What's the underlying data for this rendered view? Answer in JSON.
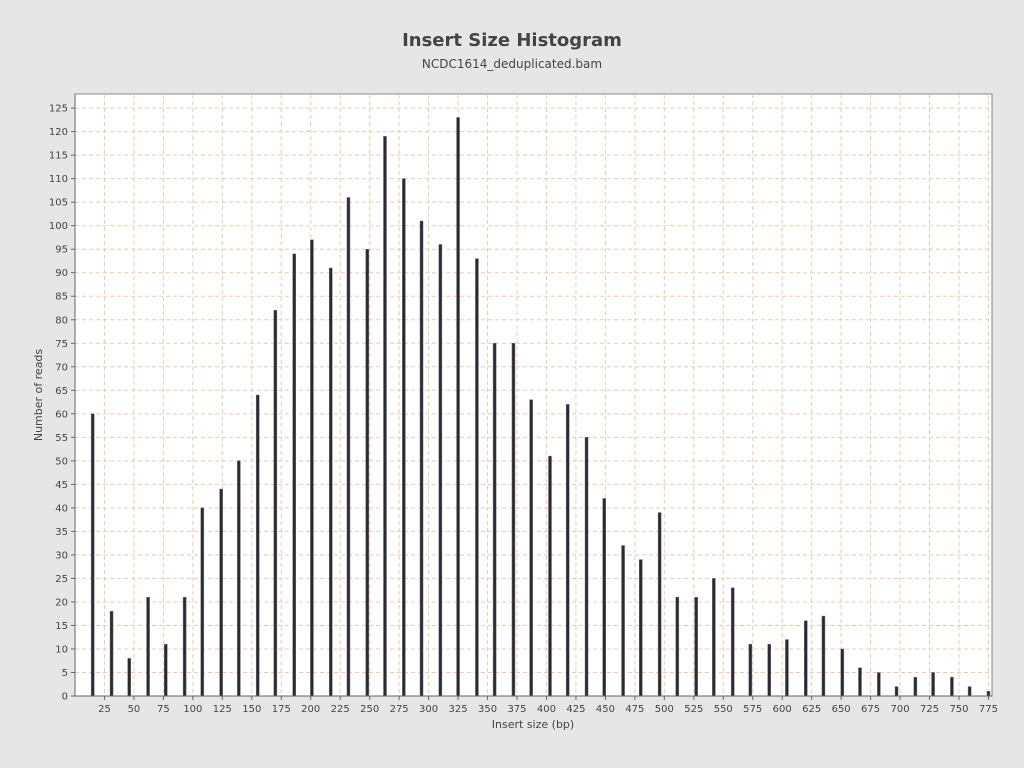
{
  "chart_data": {
    "type": "bar",
    "title": "Insert Size Histogram",
    "subtitle": "NCDC1614_deduplicated.bam",
    "xlabel": "Insert size (bp)",
    "ylabel": "Number of reads",
    "xlim": [
      0,
      778
    ],
    "ylim": [
      0,
      128
    ],
    "x_ticks": [
      25,
      50,
      75,
      100,
      125,
      150,
      175,
      200,
      225,
      250,
      275,
      300,
      325,
      350,
      375,
      400,
      425,
      450,
      475,
      500,
      525,
      550,
      575,
      600,
      625,
      650,
      675,
      700,
      725,
      750,
      775
    ],
    "y_ticks": [
      0,
      5,
      10,
      15,
      20,
      25,
      30,
      35,
      40,
      45,
      50,
      55,
      60,
      65,
      70,
      75,
      80,
      85,
      90,
      95,
      100,
      105,
      110,
      115,
      120,
      125
    ],
    "grid": true,
    "colors": {
      "bar_fill": "#2b2b2b",
      "bar_edge": "#6a6a8a",
      "grid": "#f0c8b0",
      "background": "#ffffff"
    },
    "x": [
      15,
      31,
      46,
      62,
      77,
      93,
      108,
      124,
      139,
      155,
      170,
      186,
      201,
      217,
      232,
      248,
      263,
      279,
      294,
      310,
      325,
      341,
      356,
      372,
      387,
      403,
      418,
      434,
      449,
      465,
      480,
      496,
      511,
      527,
      542,
      558,
      573,
      589,
      604,
      620,
      635,
      651,
      666,
      682,
      697,
      713,
      728,
      744,
      759,
      775
    ],
    "values": [
      60,
      18,
      8,
      21,
      11,
      21,
      40,
      44,
      50,
      64,
      82,
      94,
      97,
      91,
      106,
      95,
      119,
      110,
      101,
      96,
      123,
      93,
      75,
      75,
      63,
      51,
      62,
      55,
      42,
      32,
      29,
      39,
      21,
      21,
      25,
      23,
      11,
      11,
      12,
      16,
      17,
      10,
      6,
      5,
      2,
      4,
      5,
      4,
      2,
      1
    ]
  }
}
